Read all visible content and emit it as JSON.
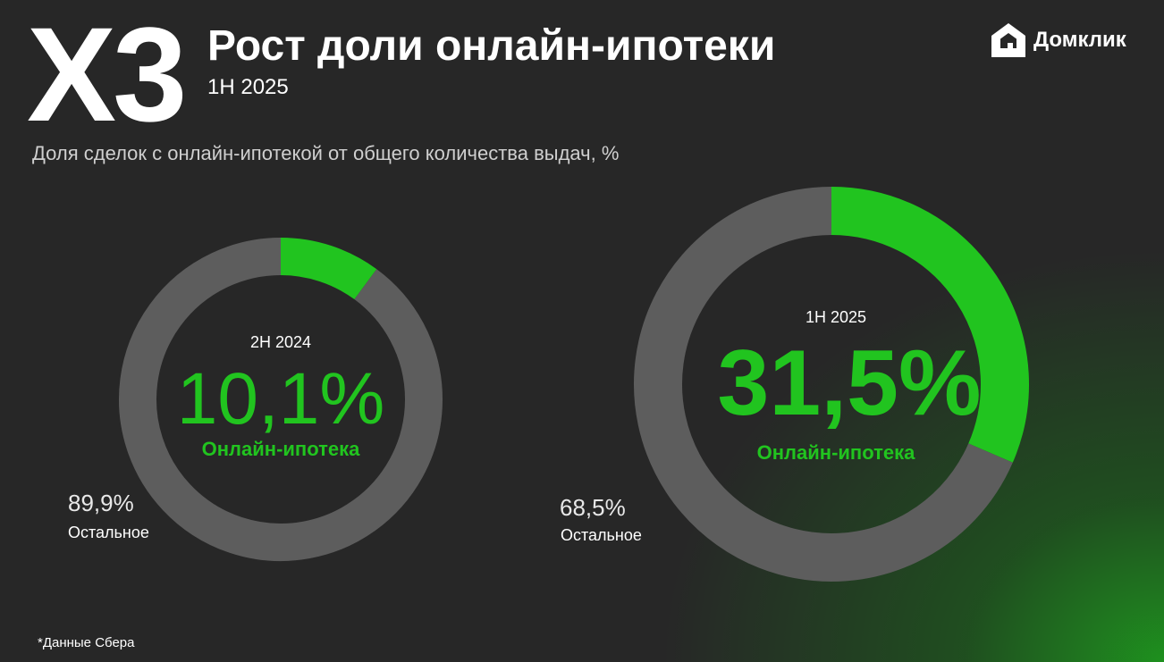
{
  "header": {
    "multiplier": "Х3",
    "title": "Рост доли онлайн-ипотеки",
    "subtitle": "1Н 2025",
    "caption": "Доля сделок с онлайн-ипотекой от общего количества выдач, %"
  },
  "brand": {
    "logo_text": "Домклик",
    "logo_icon": "house-icon"
  },
  "colors": {
    "accent": "#21c41f",
    "ring_rest": "#5d5d5d",
    "background": "#272727"
  },
  "chart_data": [
    {
      "type": "pie",
      "period": "2Н 2024",
      "center_value": "10,1%",
      "center_label": "Онлайн-ипотека",
      "rest_value": "89,9%",
      "rest_label": "Остальное",
      "slices": [
        {
          "label": "Онлайн-ипотека",
          "value": 10.1,
          "color": "#21c41f"
        },
        {
          "label": "Остальное",
          "value": 89.9,
          "color": "#5d5d5d"
        }
      ]
    },
    {
      "type": "pie",
      "period": "1Н 2025",
      "center_value": "31,5%",
      "center_label": "Онлайн-ипотека",
      "rest_value": "68,5%",
      "rest_label": "Остальное",
      "slices": [
        {
          "label": "Онлайн-ипотека",
          "value": 31.5,
          "color": "#21c41f"
        },
        {
          "label": "Остальное",
          "value": 68.5,
          "color": "#5d5d5d"
        }
      ]
    }
  ],
  "footnote": "*Данные Сбера"
}
